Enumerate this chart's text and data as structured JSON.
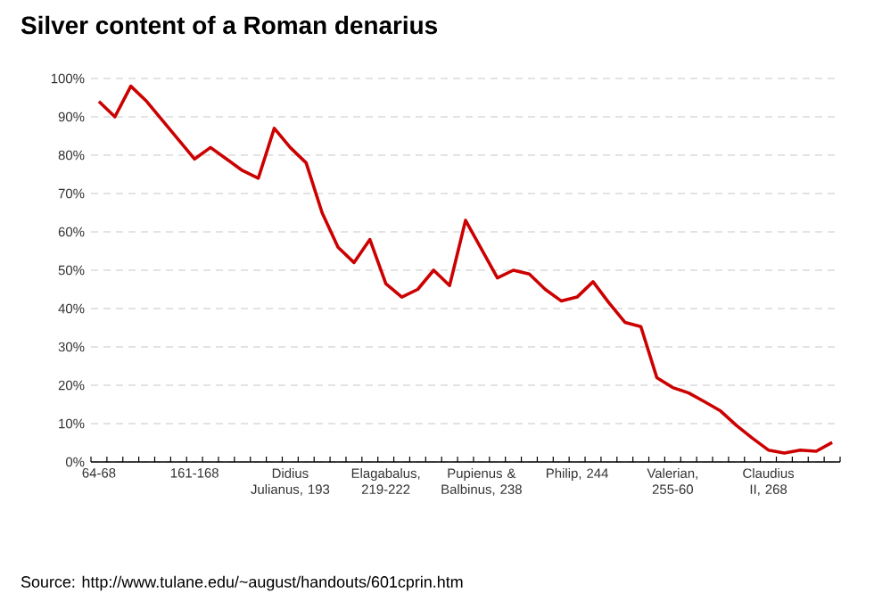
{
  "chart_data": {
    "type": "line",
    "title": "Silver content of a Roman denarius",
    "categories": [
      "64-68",
      null,
      null,
      null,
      null,
      null,
      "161-168",
      null,
      null,
      null,
      null,
      null,
      "Didius Julianus, 193",
      null,
      null,
      null,
      null,
      null,
      "Elagabalus, 219-222",
      null,
      null,
      null,
      null,
      null,
      "Pupienus & Balbinus, 238",
      null,
      null,
      null,
      null,
      null,
      "Philip, 244",
      null,
      null,
      null,
      null,
      null,
      "Valerian, 255-60",
      null,
      null,
      null,
      null,
      null,
      "Claudius II, 268",
      null,
      null,
      null,
      null
    ],
    "series": [
      {
        "color": "#cc0000",
        "values": [
          94,
          90,
          98,
          94,
          89,
          84,
          79,
          82,
          79,
          76,
          74,
          87,
          82,
          78,
          65,
          56,
          52,
          58,
          46.5,
          43,
          45,
          50,
          46,
          63,
          55.5,
          48,
          50,
          49,
          45,
          42,
          43,
          47,
          41.5,
          36.4,
          35.3,
          22,
          19.4,
          18,
          15.7,
          13.3,
          9.5,
          6.2,
          3.1,
          2.3,
          3.1,
          2.8,
          5.1
        ]
      }
    ],
    "ylim": [
      0,
      100
    ],
    "yticks": [
      {
        "value": 0,
        "label": "0%"
      },
      {
        "value": 10,
        "label": "10%"
      },
      {
        "value": 20,
        "label": "20%"
      },
      {
        "value": 30,
        "label": "30%"
      },
      {
        "value": 40,
        "label": "40%"
      },
      {
        "value": 50,
        "label": "50%"
      },
      {
        "value": 60,
        "label": "60%"
      },
      {
        "value": 70,
        "label": "70%"
      },
      {
        "value": 80,
        "label": "80%"
      },
      {
        "value": 90,
        "label": "90%"
      },
      {
        "value": 100,
        "label": "100%"
      }
    ],
    "grid": "y",
    "marker": "none",
    "line_style": "solid",
    "annotations": [
      "Source: http://www.tulane.edu/~august/handouts/601cprin.htm"
    ]
  }
}
